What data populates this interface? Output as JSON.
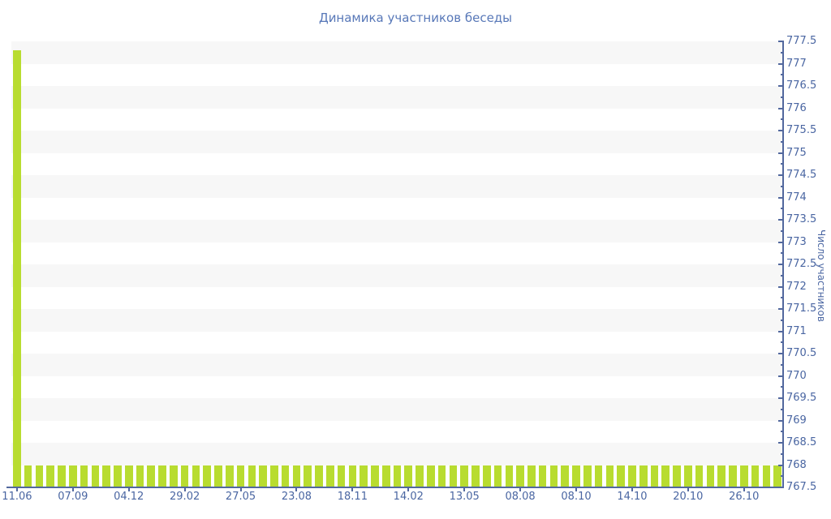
{
  "chart_data": {
    "type": "bar",
    "title": "Динамика участников беседы",
    "y_axis_title": "Число участников",
    "legend": "none",
    "grid": "alternating-horizontal-bands",
    "ylim": [
      767.5,
      777.5
    ],
    "y_tick_step": 0.5,
    "y_minor_tick_step": 0.25,
    "x_label_step": 5,
    "x_tick_labels": [
      "11.06",
      "07.09",
      "04.12",
      "29.02",
      "27.05",
      "23.08",
      "18.11",
      "14.02",
      "13.05",
      "08.08",
      "08.10",
      "14.10",
      "20.10",
      "26.10"
    ],
    "n_bars": 69,
    "values": [
      777.3,
      768,
      768,
      768,
      768,
      768,
      768,
      768,
      768,
      768,
      768,
      768,
      768,
      768,
      768,
      768,
      768,
      768,
      768,
      768,
      768,
      768,
      768,
      768,
      768,
      768,
      768,
      768,
      768,
      768,
      768,
      768,
      768,
      768,
      768,
      768,
      768,
      768,
      768,
      768,
      768,
      768,
      768,
      768,
      768,
      768,
      768,
      768,
      768,
      768,
      768,
      768,
      768,
      768,
      768,
      768,
      768,
      768,
      768,
      768,
      768,
      768,
      768,
      768,
      768,
      768,
      768,
      768,
      768
    ],
    "colors": {
      "bar": "#b8dc30",
      "band": "#f7f7f7",
      "axis": "#52689e",
      "tick": "#52689e",
      "label": "#4a66a2",
      "title": "#5878b8",
      "background": "#ffffff"
    }
  }
}
